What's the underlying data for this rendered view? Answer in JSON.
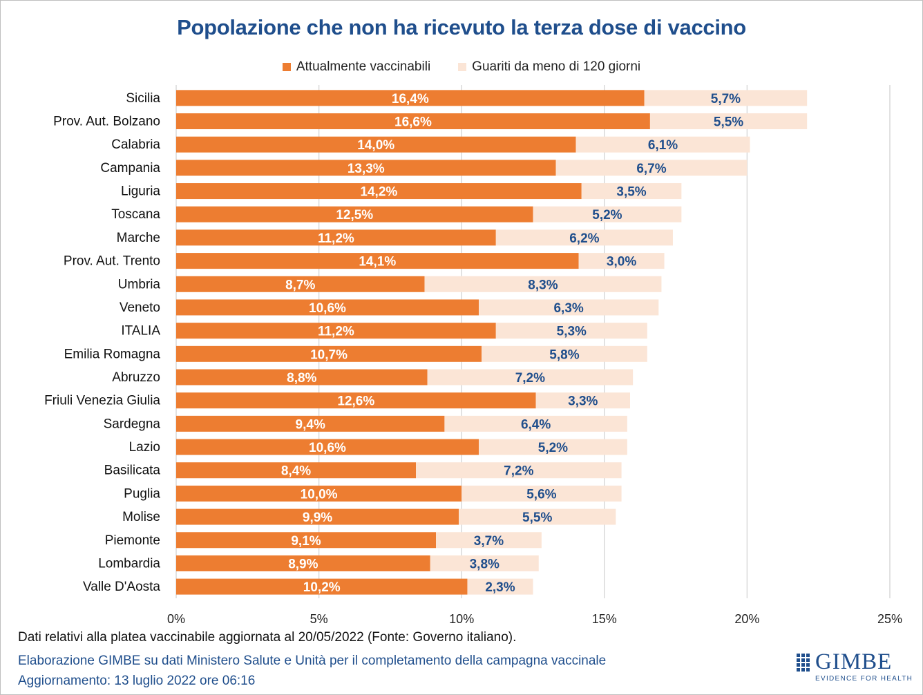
{
  "chart_data": {
    "type": "bar",
    "orientation": "horizontal",
    "stacked": true,
    "title": "Popolazione che non ha ricevuto la terza dose di vaccino",
    "legend_position": "top",
    "categories": [
      "Sicilia",
      "Prov. Aut. Bolzano",
      "Calabria",
      "Campania",
      "Liguria",
      "Toscana",
      "Marche",
      "Prov. Aut. Trento",
      "Umbria",
      "Veneto",
      "ITALIA",
      "Emilia Romagna",
      "Abruzzo",
      "Friuli Venezia Giulia",
      "Sardegna",
      "Lazio",
      "Basilicata",
      "Puglia",
      "Molise",
      "Piemonte",
      "Lombardia",
      "Valle D'Aosta"
    ],
    "series": [
      {
        "name": "Attualmente vaccinabili",
        "color": "#ed7d31",
        "values": [
          16.4,
          16.6,
          14.0,
          13.3,
          14.2,
          12.5,
          11.2,
          14.1,
          8.7,
          10.6,
          11.2,
          10.7,
          8.8,
          12.6,
          9.4,
          10.6,
          8.4,
          10.0,
          9.9,
          9.1,
          8.9,
          10.2
        ],
        "labels": [
          "16,4%",
          "16,6%",
          "14,0%",
          "13,3%",
          "14,2%",
          "12,5%",
          "11,2%",
          "14,1%",
          "8,7%",
          "10,6%",
          "11,2%",
          "10,7%",
          "8,8%",
          "12,6%",
          "9,4%",
          "10,6%",
          "8,4%",
          "10,0%",
          "9,9%",
          "9,1%",
          "8,9%",
          "10,2%"
        ]
      },
      {
        "name": "Guariti da meno di 120 giorni",
        "color": "#fbe5d6",
        "values": [
          5.7,
          5.5,
          6.1,
          6.7,
          3.5,
          5.2,
          6.2,
          3.0,
          8.3,
          6.3,
          5.3,
          5.8,
          7.2,
          3.3,
          6.4,
          5.2,
          7.2,
          5.6,
          5.5,
          3.7,
          3.8,
          2.3
        ],
        "labels": [
          "5,7%",
          "5,5%",
          "6,1%",
          "6,7%",
          "3,5%",
          "5,2%",
          "6,2%",
          "3,0%",
          "8,3%",
          "6,3%",
          "5,3%",
          "5,8%",
          "7,2%",
          "3,3%",
          "6,4%",
          "5,2%",
          "7,2%",
          "5,6%",
          "5,5%",
          "3,7%",
          "3,8%",
          "2,3%"
        ]
      }
    ],
    "xlim": [
      0,
      25
    ],
    "x_ticks": [
      0,
      5,
      10,
      15,
      20,
      25
    ],
    "x_tick_labels": [
      "0%",
      "5%",
      "10%",
      "15%",
      "20%",
      "25%"
    ],
    "grid": true
  },
  "colors": {
    "title": "#1f4e8c",
    "label_white": "#ffffff",
    "label_blue": "#1f4e8c",
    "grid": "#d9d9d9"
  },
  "notes": {
    "line1": "Dati relativi alla platea vaccinabile aggiornata al 20/05/2022 (Fonte: Governo italiano).",
    "line2": "Elaborazione GIMBE su dati Ministero Salute e Unità per il completamento della campagna vaccinale",
    "line3": "Aggiornamento: 13 luglio 2022 ore 06:16"
  },
  "logo": {
    "name": "GIMBE",
    "tagline": "EVIDENCE FOR HEALTH"
  }
}
